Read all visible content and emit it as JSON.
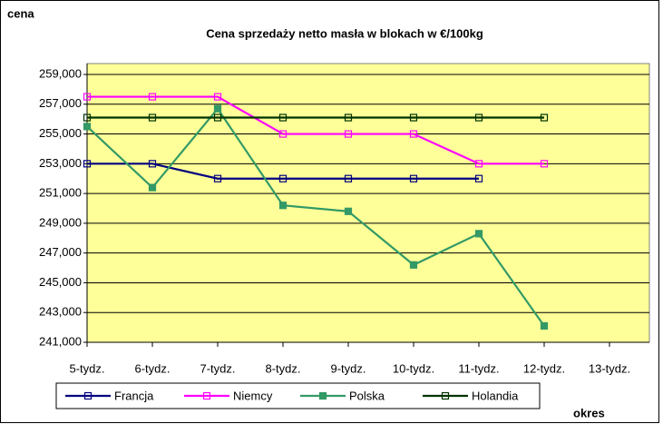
{
  "chart_data": {
    "type": "line",
    "title": "Cena sprzedaży netto masła w blokach w €/100kg",
    "y_label": "cena",
    "x_label": "okres",
    "categories": [
      "5-tydz.",
      "6-tydz.",
      "7-tydz.",
      "8-tydz.",
      "9-tydz.",
      "10-tydz.",
      "11-tydz.",
      "12-tydz.",
      "13-tydz."
    ],
    "series": [
      {
        "name": "Francja",
        "color": "#000080",
        "marker": "hollow",
        "values": [
          253.0,
          253.0,
          252.0,
          252.0,
          252.0,
          252.0,
          252.0,
          null,
          null
        ]
      },
      {
        "name": "Niemcy",
        "color": "#ff00ff",
        "marker": "hollow",
        "values": [
          257.5,
          257.5,
          257.5,
          255.0,
          255.0,
          255.0,
          253.0,
          253.0,
          null
        ]
      },
      {
        "name": "Polska",
        "color": "#339966",
        "marker": "filled",
        "values": [
          255.5,
          251.4,
          256.7,
          250.2,
          249.8,
          246.2,
          248.3,
          242.1,
          null
        ]
      },
      {
        "name": "Holandia",
        "color": "#003300",
        "marker": "hollow",
        "values": [
          256.1,
          256.1,
          256.1,
          256.1,
          256.1,
          256.1,
          256.1,
          256.1,
          null
        ]
      }
    ],
    "ylim": [
      241,
      259
    ],
    "yticks": [
      {
        "value": 241,
        "label": "241,000"
      },
      {
        "value": 243,
        "label": "243,000"
      },
      {
        "value": 245,
        "label": "245,000"
      },
      {
        "value": 247,
        "label": "247,000"
      },
      {
        "value": 249,
        "label": "249,000"
      },
      {
        "value": 251,
        "label": "251,000"
      },
      {
        "value": 253,
        "label": "253,000"
      },
      {
        "value": 255,
        "label": "255,000"
      },
      {
        "value": 257,
        "label": "257,000"
      },
      {
        "value": 259,
        "label": "259,000"
      }
    ],
    "grid": true,
    "plot_background": "#ffff99",
    "legend": "bottom"
  }
}
